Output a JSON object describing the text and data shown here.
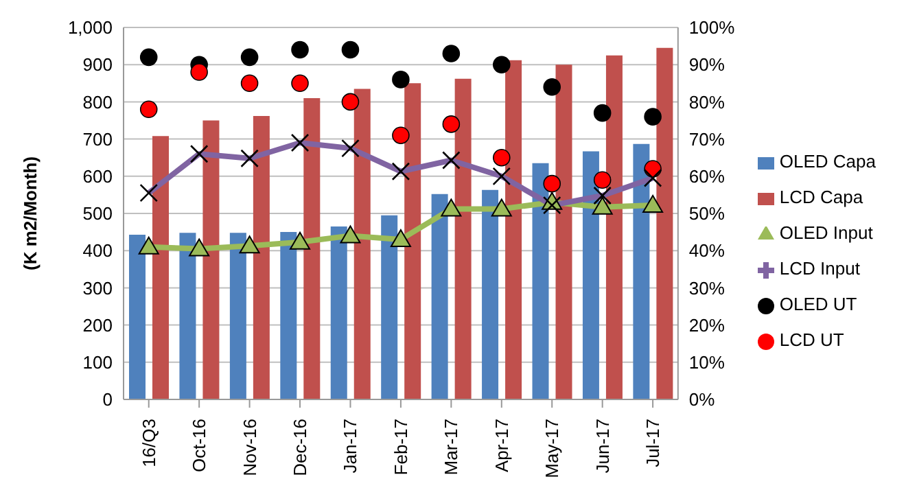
{
  "chart_data": {
    "type": "bar",
    "ylabel": "(K m2/Month)",
    "categories": [
      "16/Q3",
      "Oct-16",
      "Nov-16",
      "Dec-16",
      "Jan-17",
      "Feb-17",
      "Mar-17",
      "Apr-17",
      "May-17",
      "Jun-17",
      "Jul-17"
    ],
    "series": [
      {
        "name": "OLED Capa",
        "color": "#4f81bd",
        "values": [
          443,
          448,
          448,
          450,
          465,
          495,
          552,
          563,
          635,
          667,
          687
        ]
      },
      {
        "name": "LCD Capa",
        "color": "#c0504d",
        "values": [
          708,
          750,
          762,
          810,
          835,
          850,
          862,
          912,
          900,
          925,
          945
        ]
      },
      {
        "name": "OLED Input",
        "type": "line",
        "marker": "triangle",
        "color": "#9bbb59",
        "values": [
          410,
          405,
          413,
          423,
          440,
          430,
          512,
          512,
          530,
          517,
          522
        ]
      },
      {
        "name": "LCD Input",
        "type": "line",
        "marker": "cross",
        "color": "#8064a2",
        "values": [
          555,
          660,
          648,
          690,
          675,
          613,
          643,
          600,
          522,
          548,
          595
        ]
      },
      {
        "name": "OLED UT",
        "type": "scatter",
        "axis": "y2",
        "marker": "circle",
        "color": "#000000",
        "values": [
          92,
          90,
          92,
          94,
          94,
          86,
          93,
          90,
          84,
          77,
          76
        ]
      },
      {
        "name": "LCD UT",
        "type": "scatter",
        "axis": "y2",
        "marker": "circle",
        "color": "#ff0000",
        "values": [
          78,
          88,
          85,
          85,
          80,
          71,
          74,
          65,
          58,
          59,
          62
        ]
      }
    ],
    "ylim": [
      0,
      1000
    ],
    "yticks": [
      {
        "value": 0,
        "label": "0"
      },
      {
        "value": 100,
        "label": "100"
      },
      {
        "value": 200,
        "label": "200"
      },
      {
        "value": 300,
        "label": "300"
      },
      {
        "value": 400,
        "label": "400"
      },
      {
        "value": 500,
        "label": "500"
      },
      {
        "value": 600,
        "label": "600"
      },
      {
        "value": 700,
        "label": "700"
      },
      {
        "value": 800,
        "label": "800"
      },
      {
        "value": 900,
        "label": "900"
      },
      {
        "value": 1000,
        "label": "1,000"
      }
    ],
    "y2lim": [
      0,
      100
    ],
    "y2ticks": [
      {
        "value": 0,
        "label": "0%"
      },
      {
        "value": 10,
        "label": "10%"
      },
      {
        "value": 20,
        "label": "20%"
      },
      {
        "value": 30,
        "label": "30%"
      },
      {
        "value": 40,
        "label": "40%"
      },
      {
        "value": 50,
        "label": "50%"
      },
      {
        "value": 60,
        "label": "60%"
      },
      {
        "value": 70,
        "label": "70%"
      },
      {
        "value": 80,
        "label": "80%"
      },
      {
        "value": 90,
        "label": "90%"
      },
      {
        "value": 100,
        "label": "100%"
      }
    ],
    "grid": "y",
    "legend": "right"
  }
}
